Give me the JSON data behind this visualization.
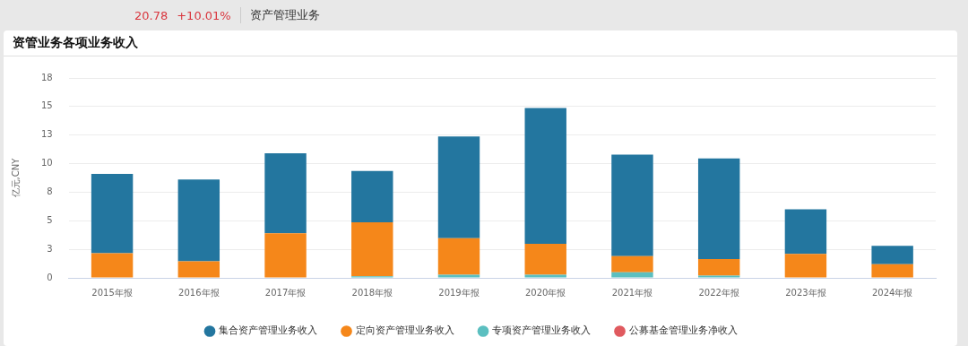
{
  "chart_data": {
    "type": "bar",
    "title": "资管业务各项业务收入",
    "subtitle": "资产管理业务",
    "annotations": [
      "20.78",
      "+10.01%"
    ],
    "ylabel": "亿元,CNY",
    "categories": [
      "2015年报",
      "2016年报",
      "2017年报",
      "2018年报",
      "2019年报",
      "2020年报",
      "2021年报",
      "2022年报",
      "2023年报",
      "2024年报"
    ],
    "stacked": true,
    "series": [
      {
        "name": "专项资产管理业务收入",
        "color": "#5bbfc0",
        "values": [
          0,
          0,
          0,
          0.14,
          0.28,
          0.28,
          0.5,
          0.2,
          0,
          0
        ]
      },
      {
        "name": "定向资产管理业务收入",
        "color": "#f5871a",
        "values": [
          2.15,
          1.46,
          3.9,
          4.72,
          3.2,
          2.7,
          1.4,
          1.45,
          2.1,
          1.2
        ]
      },
      {
        "name": "集合资产管理业务收入",
        "color": "#23769f",
        "values": [
          6.95,
          7.15,
          7.0,
          4.5,
          8.9,
          11.9,
          8.9,
          8.8,
          3.9,
          1.6
        ]
      },
      {
        "name": "公募基金管理业务净收入",
        "color": "#e05a5f",
        "values": [
          null,
          null,
          null,
          null,
          null,
          null,
          null,
          null,
          null,
          null
        ]
      }
    ],
    "ylim": [
      0,
      17.5
    ],
    "yticks": [
      0,
      {
        "value": 2.5,
        "label": "3"
      },
      {
        "value": 5,
        "label": "5"
      },
      {
        "value": 7.5,
        "label": "8"
      },
      {
        "value": 10,
        "label": "10"
      },
      {
        "value": 12.5,
        "label": "13"
      },
      {
        "value": 15,
        "label": "15"
      },
      {
        "value": 17.5,
        "label": "18"
      }
    ],
    "grid": "y",
    "legend": "bottom"
  }
}
